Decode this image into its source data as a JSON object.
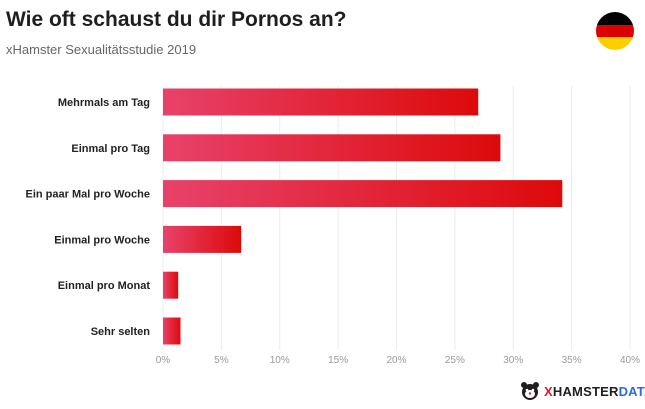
{
  "header": {
    "title": "Wie oft schaust du dir Pornos an?",
    "subtitle": "xHamster Sexualitätsstudie 2019"
  },
  "flag": {
    "colors": [
      "#000000",
      "#dd0000",
      "#ffce00"
    ],
    "icon": "germany-flag-icon"
  },
  "brand": {
    "icon": "hamster-logo-icon",
    "x": "X",
    "hamster": "HAMSTER",
    "data": "DATA"
  },
  "colors": {
    "bar_start": "#e8426b",
    "bar_end": "#dd0a0a",
    "grid": "#ececec",
    "tick": "#9a9a9a",
    "label": "#222222"
  },
  "chart_data": {
    "type": "bar",
    "orientation": "horizontal",
    "title": "Wie oft schaust du dir Pornos an?",
    "subtitle": "xHamster Sexualitätsstudie 2019",
    "categories": [
      "Mehrmals am Tag",
      "Einmal pro Tag",
      "Ein paar Mal pro Woche",
      "Einmal pro Woche",
      "Einmal pro Monat",
      "Sehr selten"
    ],
    "values": [
      27,
      28.9,
      34.2,
      6.7,
      1.3,
      1.5
    ],
    "unit": "%",
    "xlim": [
      0,
      40
    ],
    "xticks": [
      "0%",
      "5%",
      "10%",
      "15%",
      "20%",
      "25%",
      "30%",
      "35%",
      "40%"
    ],
    "grid": "vertical",
    "legend": "none"
  }
}
